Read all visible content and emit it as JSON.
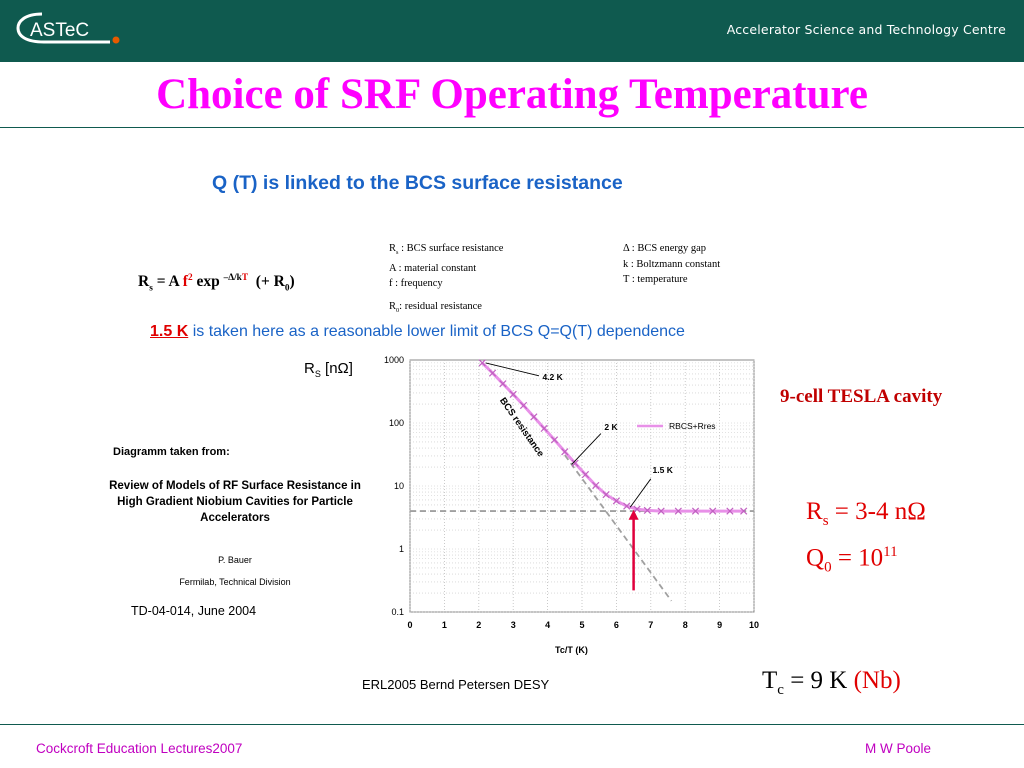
{
  "header": {
    "logo_text": "ASTeC",
    "org_name": "Accelerator Science and Technology Centre",
    "colors": {
      "band": "#0f5a4f",
      "logo_dot": "#e65a00"
    }
  },
  "title": "Choice of SRF Operating Temperature",
  "slide": {
    "heading": "Q (T) is linked to the BCS surface resistance",
    "formula": {
      "rs_sub": "s",
      "rhs_a": "= A ",
      "rhs_f": "f",
      "rhs_f_exp": "2",
      "rhs_exp": " exp ",
      "exp_term_1": "–Δ/k",
      "exp_term_2": "T",
      "residual_open": "(+ R",
      "residual_sub": "0",
      "residual_close": ")"
    },
    "legend_left": [
      {
        "name": "R",
        "sub": "s",
        "desc": " : BCS surface resistance"
      },
      {
        "name": "A",
        "sub": "",
        "desc": " : material constant"
      },
      {
        "name": "f",
        "sub": "",
        "desc": " : frequency"
      }
    ],
    "legend_right": [
      "Δ : BCS energy gap",
      "k : Boltzmann constant",
      "T : temperature"
    ],
    "r0_def": {
      "sub": "0",
      "desc": ": residual resistance"
    },
    "limit_key": "1.5 K",
    "limit_text": " is taken here as a reasonable lower limit of BCS Q=Q(T) dependence",
    "rs_axis": {
      "sub": "S",
      "unit": " [nΩ]"
    },
    "reference": {
      "intro": "Diagramm taken from:",
      "title": "Review of Models of RF Surface Resistance in High Gradient Niobium Cavities for Particle Accelerators",
      "author": "P. Bauer",
      "org": "Fermilab, Technical Division",
      "id": "TD-04-014, June 2004"
    },
    "credit": "ERL2005  Bernd Petersen DESY",
    "cavity": "9-cell TESLA cavity",
    "rs_value": {
      "sub": "s",
      "text": " = 3-4 nΩ"
    },
    "q0_value": {
      "sub": "0",
      "text": " = 10",
      "sup": "11"
    },
    "tc_value": {
      "sub": "c",
      "text": " = 9 K  ",
      "nb": "(Nb)"
    }
  },
  "chart_data": {
    "type": "line",
    "xlabel": "Tc/T (K)",
    "ylabel": "",
    "xlim": [
      0,
      10
    ],
    "ylim": [
      0.1,
      1000
    ],
    "y_scale": "log",
    "x_ticks": [
      0,
      1,
      2,
      3,
      4,
      5,
      6,
      7,
      8,
      9,
      10
    ],
    "y_ticks": [
      0.1,
      1,
      10,
      100,
      1000
    ],
    "grid": true,
    "legend": "right",
    "series": [
      {
        "name": "RBCS+Rres",
        "color": "#e890e8",
        "x": [
          2.1,
          2.4,
          2.7,
          3.0,
          3.3,
          3.6,
          3.9,
          4.2,
          4.5,
          4.8,
          5.1,
          5.4,
          5.7,
          6.0,
          6.3,
          6.6,
          6.9,
          7.3,
          7.8,
          8.3,
          8.8,
          9.3,
          9.7
        ],
        "y": [
          900,
          620,
          420,
          285,
          190,
          125,
          82,
          54,
          35,
          23,
          15.2,
          10.2,
          7.3,
          5.8,
          4.8,
          4.3,
          4.1,
          4.0,
          4.0,
          4.0,
          4.0,
          4.0,
          4.0
        ]
      },
      {
        "name": "BCS resistance",
        "color": "#a0a0a0",
        "x": [
          4.5,
          7.6
        ],
        "y": [
          31,
          0.15
        ]
      },
      {
        "name": "residual",
        "color": "#a0a0a0",
        "x": [
          0,
          10
        ],
        "y": [
          4,
          4
        ]
      }
    ],
    "annotations": [
      {
        "text": "4.2 K",
        "x": 2.2,
        "y": 900
      },
      {
        "text": "2 K",
        "x": 4.7,
        "y": 22
      },
      {
        "text": "1.5 K",
        "x": 6.4,
        "y": 4.6
      },
      {
        "text": "BCS resistance",
        "x": 2.6,
        "y": 230
      }
    ],
    "arrow": {
      "x": 6.5,
      "y_from": 0.22,
      "y_to": 4.2,
      "color": "#e0003c"
    }
  },
  "footer": {
    "left": "Cockcroft Education Lectures2007",
    "right": "M W Poole"
  }
}
